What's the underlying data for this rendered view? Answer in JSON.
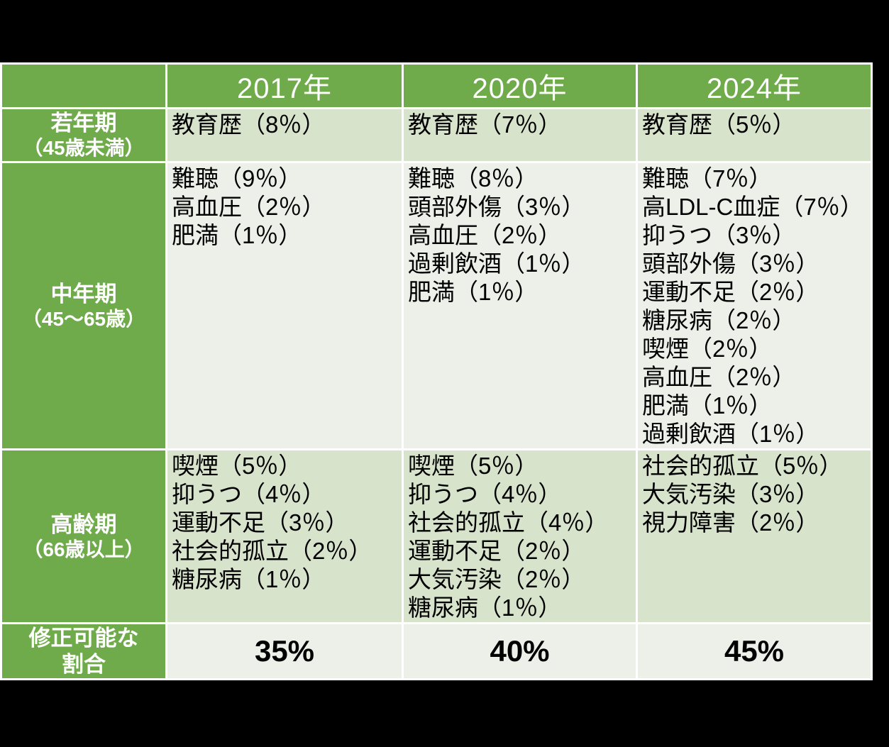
{
  "colors": {
    "background": "#000000",
    "grid_border": "#FFFFFF",
    "header_green": "#6FAB4B",
    "band_dark": "#D7E3CB",
    "band_light": "#ECF0E9",
    "text_on_green": "#FFFFFF",
    "text_dark": "#000000"
  },
  "chart_data": {
    "type": "table",
    "title": "",
    "col_headers": [
      "2017年",
      "2020年",
      "2024年"
    ],
    "rows": [
      {
        "label": "若年期",
        "label_sub": "（45歳未満）",
        "cells": [
          [
            "教育歴（8％）"
          ],
          [
            "教育歴（7％）"
          ],
          [
            "教育歴（5％）"
          ]
        ]
      },
      {
        "label": "中年期",
        "label_sub": "（45～65歳）",
        "cells": [
          [
            "難聴（9％）",
            "高血圧（2％）",
            "肥満（1％）"
          ],
          [
            "難聴（8％）",
            "頭部外傷（3％）",
            "高血圧（2％）",
            "過剰飲酒（1％）",
            "肥満（1％）"
          ],
          [
            "難聴（7％）",
            "高LDL-C血症（7％）",
            "抑うつ（3％）",
            "頭部外傷（3％）",
            "運動不足（2％）",
            "糖尿病（2％）",
            "喫煙（2％）",
            "高血圧（2％）",
            "肥満（1％）",
            "過剰飲酒（1％）"
          ]
        ]
      },
      {
        "label": "高齢期",
        "label_sub": "（66歳以上）",
        "cells": [
          [
            "喫煙（5％）",
            "抑うつ（4％）",
            "運動不足（3％）",
            "社会的孤立（2％）",
            "糖尿病（1％）"
          ],
          [
            "喫煙（5％）",
            "抑うつ（4％）",
            "社会的孤立（4％）",
            "運動不足（2％）",
            "大気汚染（2％）",
            "糖尿病（1％）"
          ],
          [
            "社会的孤立（5％）",
            "大気汚染（3％）",
            "視力障害（2％）"
          ]
        ]
      },
      {
        "label": "修正可能な",
        "label_sub": "割合",
        "cells": [
          "35%",
          "40%",
          "45%"
        ]
      }
    ]
  }
}
